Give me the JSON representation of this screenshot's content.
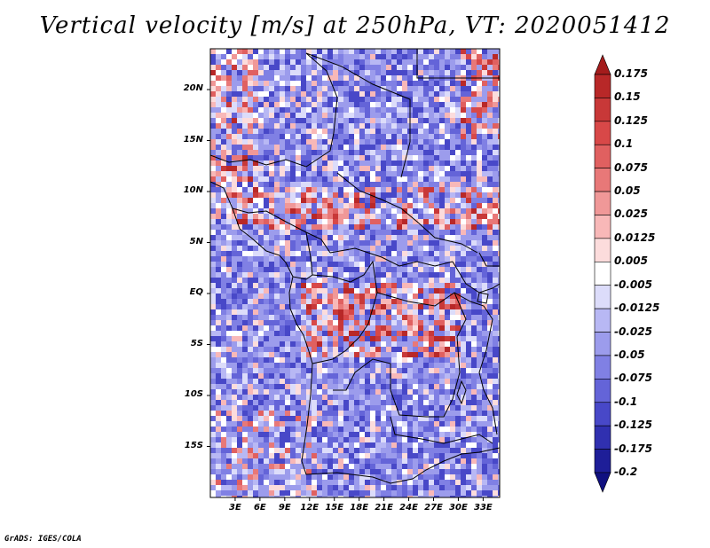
{
  "title": "Vertical velocity [m/s] at 250hPa, VT: 2020051412",
  "footer": "GrADS: IGES/COLA",
  "chart_data": {
    "type": "heatmap",
    "title": "Vertical velocity [m/s] at 250hPa, VT: 2020051412",
    "variable": "Vertical velocity",
    "units": "m/s",
    "level": "250hPa",
    "valid_time": "2020051412",
    "lon_range": [
      0,
      35
    ],
    "lat_range": [
      -20,
      24
    ],
    "y_ticks": [
      {
        "value": 20,
        "label": "20N"
      },
      {
        "value": 15,
        "label": "15N"
      },
      {
        "value": 10,
        "label": "10N"
      },
      {
        "value": 5,
        "label": "5N"
      },
      {
        "value": 0,
        "label": "EQ"
      },
      {
        "value": -5,
        "label": "5S"
      },
      {
        "value": -10,
        "label": "10S"
      },
      {
        "value": -15,
        "label": "15S"
      }
    ],
    "x_ticks": [
      {
        "value": 3,
        "label": "3E"
      },
      {
        "value": 6,
        "label": "6E"
      },
      {
        "value": 9,
        "label": "9E"
      },
      {
        "value": 12,
        "label": "12E"
      },
      {
        "value": 15,
        "label": "15E"
      },
      {
        "value": 18,
        "label": "18E"
      },
      {
        "value": 21,
        "label": "21E"
      },
      {
        "value": 24,
        "label": "24E"
      },
      {
        "value": 27,
        "label": "27E"
      },
      {
        "value": 30,
        "label": "30E"
      },
      {
        "value": 33,
        "label": "33E"
      }
    ],
    "colorbar": {
      "labels": [
        "0.175",
        "0.15",
        "0.125",
        "0.1",
        "0.075",
        "0.05",
        "0.025",
        "0.0125",
        "0.005",
        "-0.005",
        "-0.0125",
        "-0.025",
        "-0.05",
        "-0.075",
        "-0.1",
        "-0.125",
        "-0.175",
        "-0.2"
      ],
      "colors": [
        "#a41c1c",
        "#b82828",
        "#c83838",
        "#d84848",
        "#e06060",
        "#e87878",
        "#f09898",
        "#f8b8b8",
        "#fcdcdc",
        "#ffffff",
        "#dcdcfa",
        "#b8b8f4",
        "#9c9cec",
        "#8080e4",
        "#6464d8",
        "#4848c8",
        "#3030b0",
        "#1e1e98",
        "#101080"
      ]
    }
  }
}
